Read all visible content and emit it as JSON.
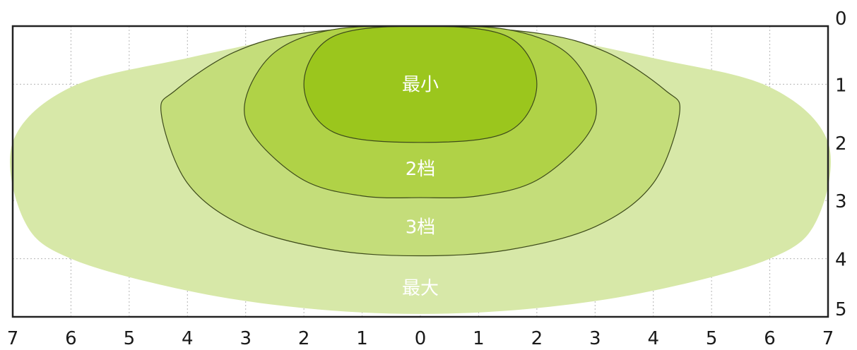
{
  "chart_data": {
    "type": "area",
    "title": "",
    "xlabel": "",
    "ylabel": "",
    "xlim": [
      -7,
      7
    ],
    "ylim": [
      0,
      5
    ],
    "x_ticks": [
      "7",
      "6",
      "5",
      "4",
      "3",
      "2",
      "1",
      "0",
      "1",
      "2",
      "3",
      "4",
      "5",
      "6",
      "7"
    ],
    "y_ticks": [
      "0",
      "1",
      "2",
      "3",
      "4",
      "5"
    ],
    "grid": true,
    "series": [
      {
        "name": "最大",
        "color": "#d7e8a8",
        "half_width": 7.0,
        "depth": 5.0,
        "profile": [
          [
            0.0,
            0.0
          ],
          [
            -1.5,
            0.06
          ],
          [
            -4.0,
            0.55
          ],
          [
            -6.0,
            1.05
          ],
          [
            -7.0,
            2.0
          ],
          [
            -6.8,
            3.35
          ],
          [
            -6.0,
            4.0
          ],
          [
            -4.0,
            4.55
          ],
          [
            -2.0,
            4.85
          ],
          [
            0.0,
            4.95
          ]
        ]
      },
      {
        "name": "3档",
        "color": "#c4dd7a",
        "half_width": 4.45,
        "depth": 3.95,
        "profile": [
          [
            0.0,
            0.0
          ],
          [
            -2.0,
            0.12
          ],
          [
            -3.2,
            0.45
          ],
          [
            -4.2,
            1.1
          ],
          [
            -4.45,
            1.5
          ],
          [
            -4.0,
            2.7
          ],
          [
            -3.0,
            3.45
          ],
          [
            -1.5,
            3.85
          ],
          [
            0.0,
            3.95
          ]
        ]
      },
      {
        "name": "2档",
        "color": "#b0d247",
        "half_width": 3.0,
        "depth": 2.95,
        "profile": [
          [
            0.0,
            0.0
          ],
          [
            -1.5,
            0.06
          ],
          [
            -2.5,
            0.45
          ],
          [
            -3.0,
            1.25
          ],
          [
            -2.85,
            1.9
          ],
          [
            -2.0,
            2.65
          ],
          [
            -1.0,
            2.92
          ],
          [
            0.0,
            2.95
          ]
        ]
      },
      {
        "name": "最小",
        "color": "#9bc61d",
        "half_width": 2.0,
        "depth": 2.0,
        "profile": [
          [
            0.0,
            0.0
          ],
          [
            -1.5,
            0.18
          ],
          [
            -2.0,
            1.0
          ],
          [
            -1.5,
            1.82
          ],
          [
            0.0,
            2.0
          ]
        ]
      }
    ],
    "labels": [
      {
        "text": "最小",
        "x": 0,
        "y": 1.0
      },
      {
        "text": "2档",
        "x": 0,
        "y": 2.45
      },
      {
        "text": "3档",
        "x": 0,
        "y": 3.45
      },
      {
        "text": "最大",
        "x": 0,
        "y": 4.5
      }
    ]
  }
}
